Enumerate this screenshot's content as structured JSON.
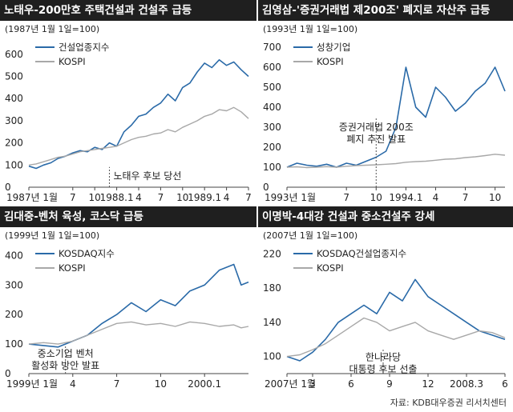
{
  "charts": [
    {
      "title": "노태우-200만호 주택건설과 건설주 급등",
      "chart_data": {
        "type": "line",
        "base_note": "(1987년 1월 1일=100)",
        "ylim": [
          0,
          650
        ],
        "yticks": [
          "0",
          "100",
          "200",
          "300",
          "400",
          "500",
          "600"
        ],
        "ytick_values": [
          0,
          100,
          200,
          300,
          400,
          500,
          600
        ],
        "xlim": [
          0,
          30
        ],
        "xtick_labels": [
          "1987년 1월",
          "7",
          "10",
          "1988.1",
          "4",
          "7",
          "10",
          "1989.1",
          "4",
          "7"
        ],
        "xtick_positions": [
          0,
          6,
          9,
          12,
          15,
          18,
          21,
          24,
          27,
          30
        ],
        "legend": [
          "건설업종지수",
          "KOSPI"
        ],
        "series": [
          {
            "name": "건설업종지수",
            "color": "#2a6aa8",
            "x": [
              0,
              1,
              2,
              3,
              4,
              5,
              6,
              7,
              8,
              9,
              10,
              11,
              12,
              13,
              14,
              15,
              16,
              17,
              18,
              19,
              20,
              21,
              22,
              23,
              24,
              25,
              26,
              27,
              28,
              29,
              30
            ],
            "values": [
              95,
              85,
              100,
              110,
              130,
              140,
              155,
              165,
              160,
              180,
              170,
              200,
              185,
              250,
              280,
              320,
              330,
              360,
              380,
              420,
              390,
              450,
              470,
              520,
              560,
              540,
              575,
              550,
              565,
              530,
              500
            ]
          },
          {
            "name": "KOSPI",
            "color": "#a8a8a8",
            "x": [
              0,
              1,
              2,
              3,
              4,
              5,
              6,
              7,
              8,
              9,
              10,
              11,
              12,
              13,
              14,
              15,
              16,
              17,
              18,
              19,
              20,
              21,
              22,
              23,
              24,
              25,
              26,
              27,
              28,
              29,
              30
            ],
            "values": [
              100,
              105,
              115,
              125,
              135,
              140,
              150,
              160,
              165,
              170,
              175,
              180,
              185,
              200,
              215,
              225,
              230,
              240,
              245,
              260,
              250,
              270,
              285,
              300,
              320,
              330,
              350,
              345,
              360,
              340,
              310
            ]
          }
        ],
        "annotations": [
          {
            "text": "노태우 후보 당선",
            "x": 11,
            "ytext": 55
          }
        ]
      }
    },
    {
      "title": "김영삼-'증권거래법 제200조' 폐지로 자산주 급등",
      "chart_data": {
        "type": "line",
        "base_note": "(1993년 1월 1일=100)",
        "ylim": [
          0,
          720
        ],
        "yticks": [
          "0",
          "100",
          "200",
          "300",
          "400",
          "500",
          "600",
          "700"
        ],
        "ytick_values": [
          0,
          100,
          200,
          300,
          400,
          500,
          600,
          700
        ],
        "xlim": [
          0,
          22
        ],
        "xtick_labels": [
          "1993년 1월",
          "7",
          "10",
          "1994.1",
          "4",
          "7",
          "10"
        ],
        "xtick_positions": [
          0,
          6,
          9,
          12,
          15,
          18,
          21
        ],
        "legend": [
          "성창기업",
          "KOSPI"
        ],
        "series": [
          {
            "name": "성창기업",
            "color": "#2a6aa8",
            "x": [
              0,
              1,
              2,
              3,
              4,
              5,
              6,
              7,
              8,
              9,
              10,
              11,
              12,
              13,
              14,
              15,
              16,
              17,
              18,
              19,
              20,
              21,
              22
            ],
            "values": [
              100,
              120,
              110,
              105,
              115,
              100,
              120,
              110,
              130,
              150,
              180,
              300,
              600,
              400,
              350,
              500,
              450,
              380,
              420,
              480,
              520,
              600,
              480
            ]
          },
          {
            "name": "KOSPI",
            "color": "#a8a8a8",
            "x": [
              0,
              1,
              2,
              3,
              4,
              5,
              6,
              7,
              8,
              9,
              10,
              11,
              12,
              13,
              14,
              15,
              16,
              17,
              18,
              19,
              20,
              21,
              22
            ],
            "values": [
              100,
              102,
              98,
              100,
              103,
              100,
              105,
              108,
              110,
              112,
              115,
              118,
              125,
              128,
              130,
              135,
              140,
              142,
              148,
              152,
              158,
              165,
              160
            ]
          }
        ],
        "annotations": [
          {
            "text": "증권거래법 200조",
            "text2": "폐지 추진 발표",
            "x": 9,
            "ytext": 305
          }
        ]
      }
    },
    {
      "title": "김대중-벤처 육성, 코스닥 급등",
      "chart_data": {
        "type": "line",
        "base_note": "(1999년 1월 1일=100)",
        "ylim": [
          0,
          420
        ],
        "yticks": [
          "0",
          "100",
          "200",
          "300",
          "400"
        ],
        "ytick_values": [
          0,
          100,
          200,
          300,
          400
        ],
        "xlim": [
          0,
          15
        ],
        "xtick_labels": [
          "1999년 1월",
          "4",
          "7",
          "10",
          "2000.1"
        ],
        "xtick_positions": [
          0,
          3,
          6,
          9,
          12
        ],
        "legend": [
          "KOSDAQ지수",
          "KOSPI"
        ],
        "series": [
          {
            "name": "KOSDAQ지수",
            "color": "#2a6aa8",
            "x": [
              0,
              1,
              2,
              3,
              4,
              5,
              6,
              7,
              8,
              9,
              10,
              11,
              12,
              13,
              14,
              14.5,
              15
            ],
            "values": [
              100,
              95,
              90,
              110,
              130,
              170,
              200,
              240,
              210,
              250,
              230,
              280,
              300,
              350,
              370,
              300,
              310
            ]
          },
          {
            "name": "KOSPI",
            "color": "#a8a8a8",
            "x": [
              0,
              1,
              2,
              3,
              4,
              5,
              6,
              7,
              8,
              9,
              10,
              11,
              12,
              13,
              14,
              14.5,
              15
            ],
            "values": [
              100,
              105,
              100,
              110,
              130,
              150,
              170,
              175,
              165,
              170,
              160,
              175,
              170,
              160,
              165,
              155,
              160
            ]
          }
        ],
        "annotations": [
          {
            "text": "중소기업 벤처",
            "text2": "활성화 방안 발표",
            "x": 2.5,
            "ytext": 70
          }
        ]
      }
    },
    {
      "title": "이명박-4대강 건설과 중소건설주 강세",
      "chart_data": {
        "type": "line",
        "base_note": "(2007년 1월 1일=100)",
        "ylim": [
          80,
          225
        ],
        "yticks": [
          "100",
          "140",
          "180",
          "220"
        ],
        "ytick_values": [
          100,
          140,
          180,
          220
        ],
        "xlim": [
          0,
          17
        ],
        "xtick_labels": [
          "2007년 1월",
          "3",
          "6",
          "9",
          "12",
          "2008.3",
          "6"
        ],
        "xtick_positions": [
          0,
          2,
          5,
          8,
          11,
          14,
          17
        ],
        "legend": [
          "KOSDAQ건설업종지수",
          "KOSPI"
        ],
        "series": [
          {
            "name": "KOSDAQ건설업종지수",
            "color": "#2a6aa8",
            "x": [
              0,
              1,
              2,
              3,
              4,
              5,
              6,
              7,
              8,
              9,
              10,
              11,
              12,
              13,
              14,
              15,
              16,
              17
            ],
            "values": [
              100,
              95,
              105,
              120,
              140,
              150,
              160,
              150,
              175,
              165,
              190,
              170,
              160,
              150,
              140,
              130,
              125,
              120
            ]
          },
          {
            "name": "KOSPI",
            "color": "#a8a8a8",
            "x": [
              0,
              1,
              2,
              3,
              4,
              5,
              6,
              7,
              8,
              9,
              10,
              11,
              12,
              13,
              14,
              15,
              16,
              17
            ],
            "values": [
              100,
              102,
              108,
              115,
              125,
              135,
              145,
              140,
              130,
              135,
              140,
              130,
              125,
              120,
              125,
              130,
              128,
              122
            ]
          }
        ],
        "annotations": [
          {
            "text": "한나라당",
            "text2": "대통령 후보 선출",
            "x": 7.5,
            "ytext": 100
          }
        ]
      }
    }
  ],
  "source": "자료: KDB대우증권 리서치센터"
}
